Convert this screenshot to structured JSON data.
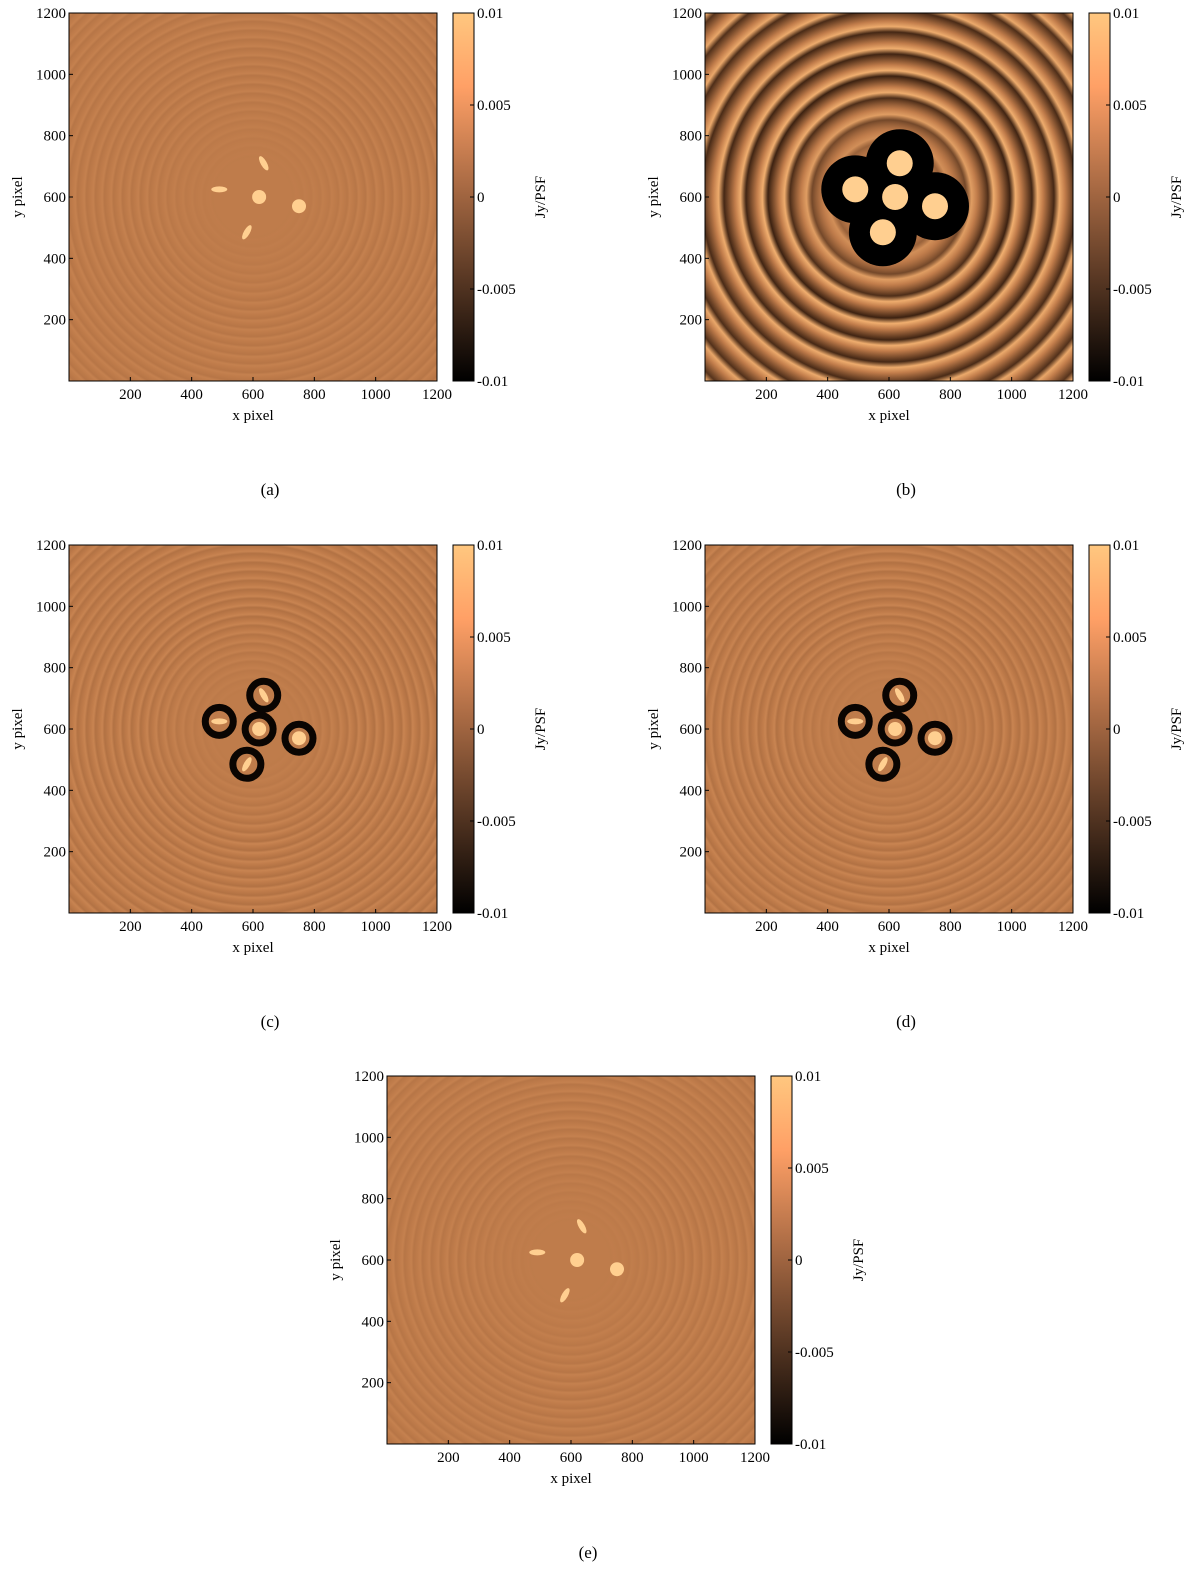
{
  "chart_data": [
    {
      "type": "image",
      "caption": "(a)",
      "xlabel": "x pixel",
      "ylabel": "y pixel",
      "xlim": [
        0,
        1200
      ],
      "ylim": [
        0,
        1200
      ],
      "xticks": [
        200,
        400,
        600,
        800,
        1000,
        1200
      ],
      "yticks": [
        200,
        400,
        600,
        800,
        1000,
        1200
      ],
      "colorbar_label": "Jy/PSF",
      "clim": [
        -0.01,
        0.01
      ],
      "cticks": [
        -0.01,
        -0.005,
        0,
        0.005,
        0.01
      ],
      "sources": {
        "x": [
          620,
          750,
          490,
          635,
          580
        ],
        "y": [
          600,
          570,
          625,
          710,
          485
        ]
      },
      "dark_rings": false,
      "saturated": false
    },
    {
      "type": "image",
      "caption": "(b)",
      "xlabel": "x pixel",
      "ylabel": "y pixel",
      "xlim": [
        0,
        1200
      ],
      "ylim": [
        0,
        1200
      ],
      "xticks": [
        200,
        400,
        600,
        800,
        1000,
        1200
      ],
      "yticks": [
        200,
        400,
        600,
        800,
        1000,
        1200
      ],
      "colorbar_label": "Jy/PSF",
      "clim": [
        -0.01,
        0.01
      ],
      "cticks": [
        -0.01,
        -0.005,
        0,
        0.005,
        0.01
      ],
      "sources": {
        "x": [
          620,
          750,
          490,
          635,
          580
        ],
        "y": [
          600,
          570,
          625,
          710,
          485
        ]
      },
      "dark_rings": false,
      "saturated": true
    },
    {
      "type": "image",
      "caption": "(c)",
      "xlabel": "x pixel",
      "ylabel": "y pixel",
      "xlim": [
        0,
        1200
      ],
      "ylim": [
        0,
        1200
      ],
      "xticks": [
        200,
        400,
        600,
        800,
        1000,
        1200
      ],
      "yticks": [
        200,
        400,
        600,
        800,
        1000,
        1200
      ],
      "colorbar_label": "Jy/PSF",
      "clim": [
        -0.01,
        0.01
      ],
      "cticks": [
        -0.01,
        -0.005,
        0,
        0.005,
        0.01
      ],
      "sources": {
        "x": [
          620,
          750,
          490,
          635,
          580
        ],
        "y": [
          600,
          570,
          625,
          710,
          485
        ]
      },
      "dark_rings": true,
      "saturated": false
    },
    {
      "type": "image",
      "caption": "(d)",
      "xlabel": "x pixel",
      "ylabel": "y pixel",
      "xlim": [
        0,
        1200
      ],
      "ylim": [
        0,
        1200
      ],
      "xticks": [
        200,
        400,
        600,
        800,
        1000,
        1200
      ],
      "yticks": [
        200,
        400,
        600,
        800,
        1000,
        1200
      ],
      "colorbar_label": "Jy/PSF",
      "clim": [
        -0.01,
        0.01
      ],
      "cticks": [
        -0.01,
        -0.005,
        0,
        0.005,
        0.01
      ],
      "sources": {
        "x": [
          620,
          750,
          490,
          635,
          580
        ],
        "y": [
          600,
          570,
          625,
          710,
          485
        ]
      },
      "dark_rings": true,
      "saturated": false
    },
    {
      "type": "image",
      "caption": "(e)",
      "xlabel": "x pixel",
      "ylabel": "y pixel",
      "xlim": [
        0,
        1200
      ],
      "ylim": [
        0,
        1200
      ],
      "xticks": [
        200,
        400,
        600,
        800,
        1000,
        1200
      ],
      "yticks": [
        200,
        400,
        600,
        800,
        1000,
        1200
      ],
      "colorbar_label": "Jy/PSF",
      "clim": [
        -0.01,
        0.01
      ],
      "cticks": [
        -0.01,
        -0.005,
        0,
        0.005,
        0.01
      ],
      "sources": {
        "x": [
          620,
          750,
          490,
          635,
          580
        ],
        "y": [
          600,
          570,
          625,
          710,
          485
        ]
      },
      "dark_rings": false,
      "saturated": false
    }
  ]
}
